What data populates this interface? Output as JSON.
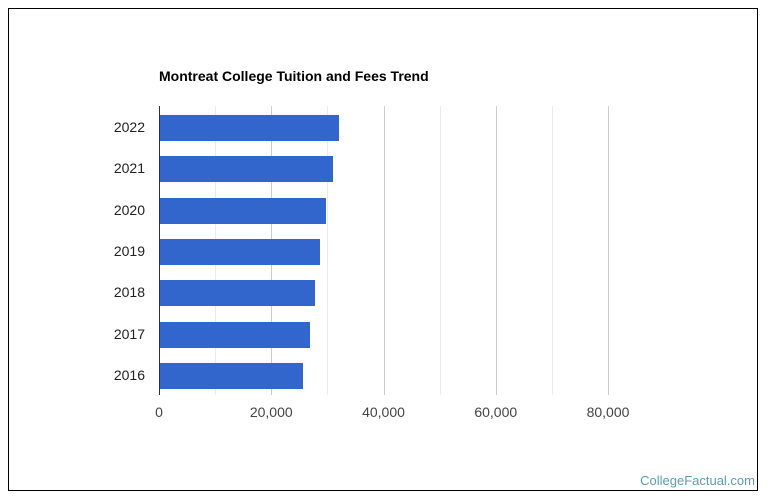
{
  "chart_data": {
    "type": "bar",
    "orientation": "horizontal",
    "title": "Montreat College Tuition and Fees Trend",
    "xlabel": "",
    "ylabel": "",
    "categories": [
      "2022",
      "2021",
      "2020",
      "2019",
      "2018",
      "2017",
      "2016"
    ],
    "values": [
      32060,
      30930,
      29740,
      28670,
      27780,
      26890,
      25650
    ],
    "xlim": [
      0,
      80000
    ],
    "xticks": [
      0,
      20000,
      40000,
      60000,
      80000
    ],
    "xtick_labels": [
      "0",
      "20,000",
      "40,000",
      "60,000",
      "80,000"
    ],
    "grid": true,
    "legend": "none",
    "bar_color": "#3366cc"
  },
  "credit": "CollegeFactual.com"
}
